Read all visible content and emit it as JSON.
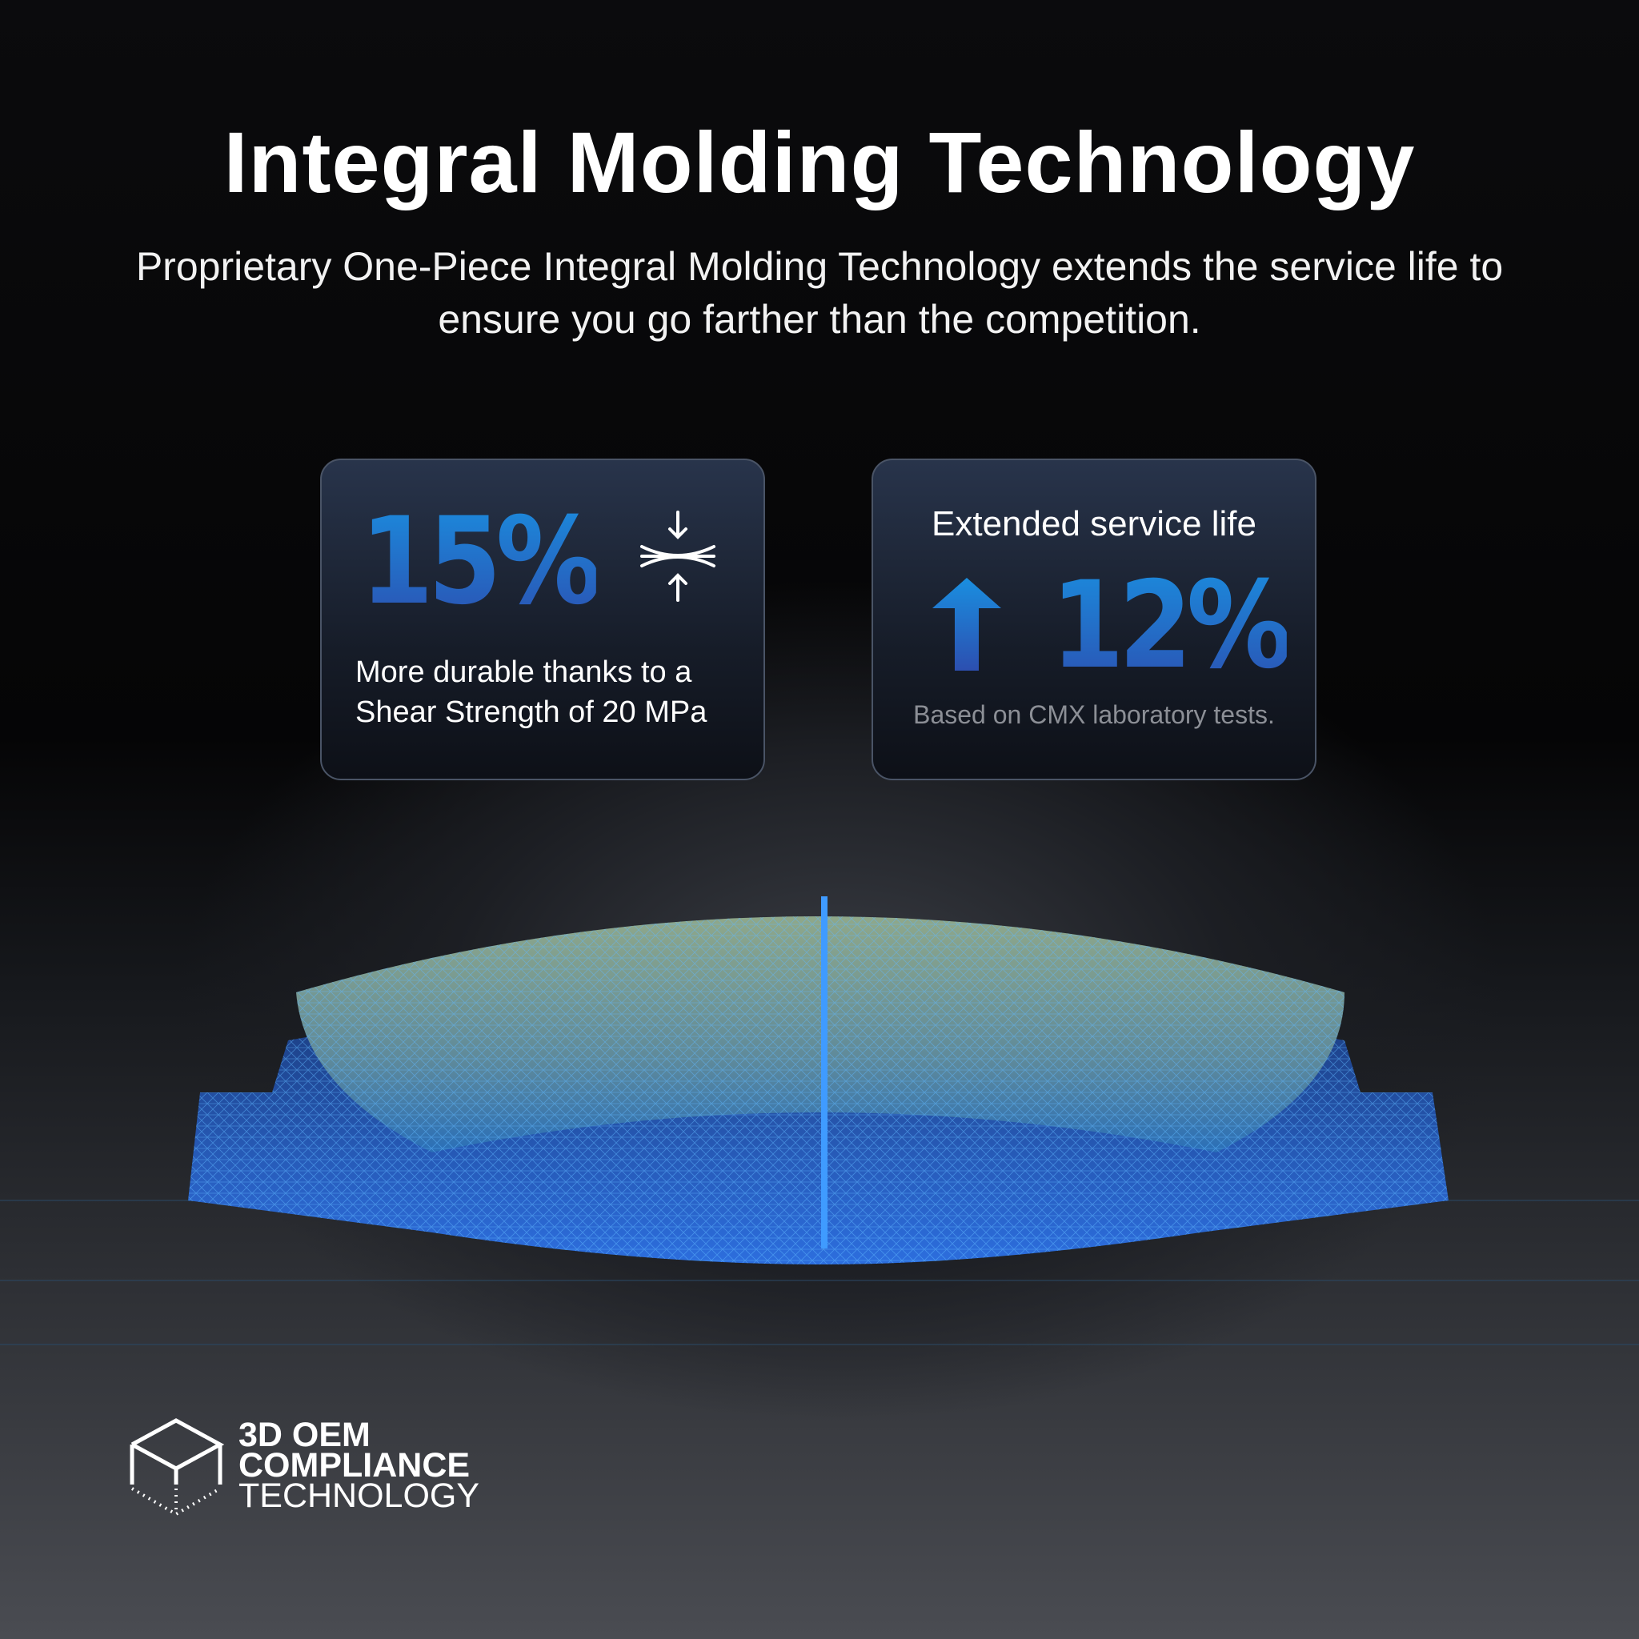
{
  "header": {
    "title": "Integral Molding Technology",
    "subtitle": "Proprietary One-Piece Integral Molding Technology extends the service life to ensure you go farther than the competition."
  },
  "cards": [
    {
      "value": "15%",
      "icon": "compression-arrows-icon",
      "text_line1": "More durable thanks to a",
      "text_line2": "Shear Strength of 20 MPa"
    },
    {
      "heading": "Extended service life",
      "icon": "arrow-up-icon",
      "value": "12%",
      "note": "Based on CMX laboratory tests."
    }
  ],
  "logo": {
    "icon": "cube-icon",
    "line1": "3D OEM",
    "line2": "COMPLIANCE",
    "line3": "TECHNOLOGY"
  },
  "colors": {
    "accent_blue": "#1a8fe0",
    "accent_deep": "#2c4fb0",
    "glow": "#2f7cff"
  }
}
